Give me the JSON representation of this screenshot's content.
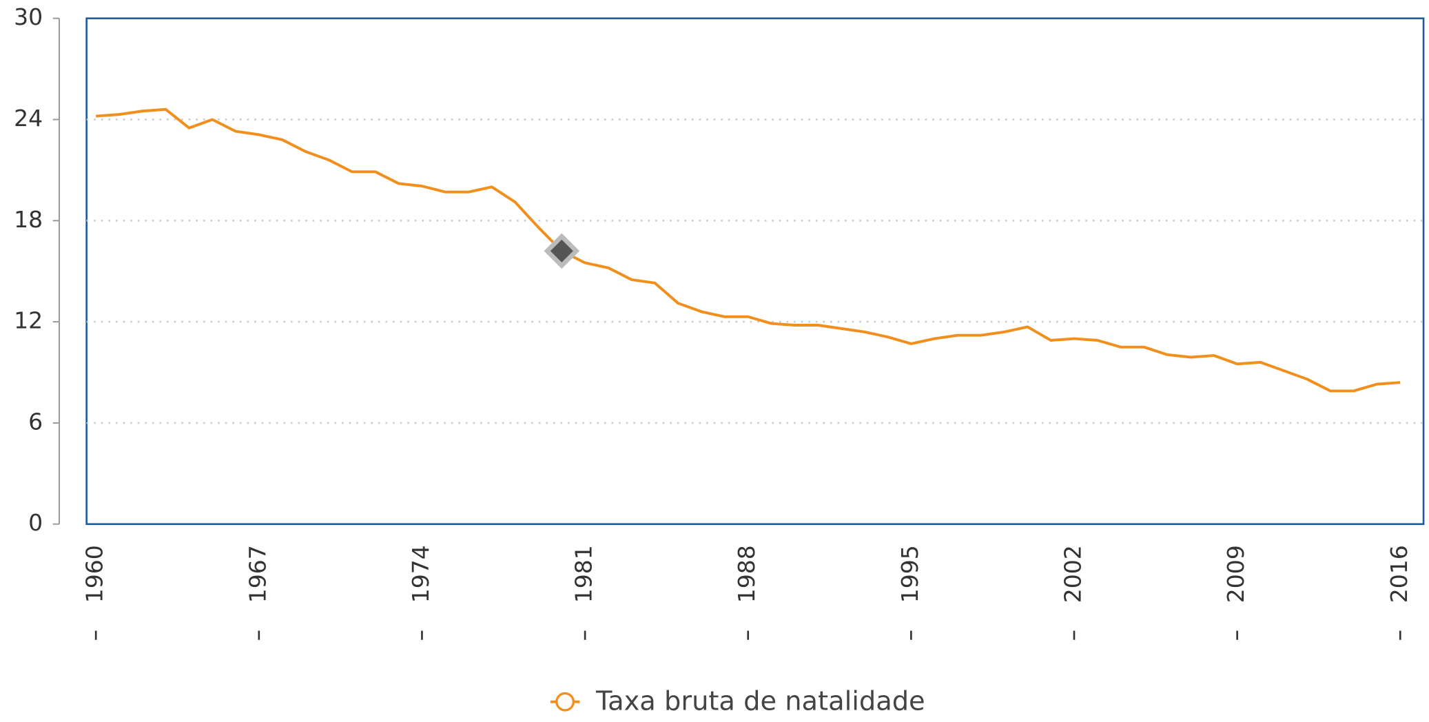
{
  "chart_data": {
    "type": "line",
    "x": [
      1960,
      1961,
      1962,
      1963,
      1964,
      1965,
      1966,
      1967,
      1968,
      1969,
      1970,
      1971,
      1972,
      1973,
      1974,
      1975,
      1976,
      1977,
      1978,
      1979,
      1980,
      1981,
      1982,
      1983,
      1984,
      1985,
      1986,
      1987,
      1988,
      1989,
      1990,
      1991,
      1992,
      1993,
      1994,
      1995,
      1996,
      1997,
      1998,
      1999,
      2000,
      2001,
      2002,
      2003,
      2004,
      2005,
      2006,
      2007,
      2008,
      2009,
      2010,
      2011,
      2012,
      2013,
      2014,
      2015,
      2016
    ],
    "series": [
      {
        "name": "Taxa bruta de natalidade",
        "color": "#f28e1c",
        "values": [
          24.2,
          24.3,
          24.5,
          24.6,
          23.5,
          24.0,
          23.3,
          23.1,
          22.8,
          22.1,
          21.6,
          20.9,
          20.9,
          20.2,
          20.05,
          19.7,
          19.7,
          20.0,
          19.1,
          17.6,
          16.2,
          15.5,
          15.2,
          14.5,
          14.3,
          13.1,
          12.6,
          12.3,
          12.3,
          11.9,
          11.8,
          11.8,
          11.6,
          11.4,
          11.1,
          10.7,
          11.0,
          11.2,
          11.2,
          11.4,
          11.7,
          10.9,
          11.0,
          10.9,
          10.5,
          10.5,
          10.05,
          9.9,
          10.0,
          9.5,
          9.6,
          9.1,
          8.6,
          7.9,
          7.9,
          8.3,
          8.4
        ]
      }
    ],
    "highlighted_x": 1980,
    "xlim": [
      1959.6,
      2017.0
    ],
    "xticks": [
      1960,
      1967,
      1974,
      1981,
      1988,
      1995,
      2002,
      2009,
      2016
    ],
    "ylim": [
      0,
      30
    ],
    "yticks": [
      0,
      6,
      12,
      18,
      24,
      30
    ],
    "grid": true
  }
}
